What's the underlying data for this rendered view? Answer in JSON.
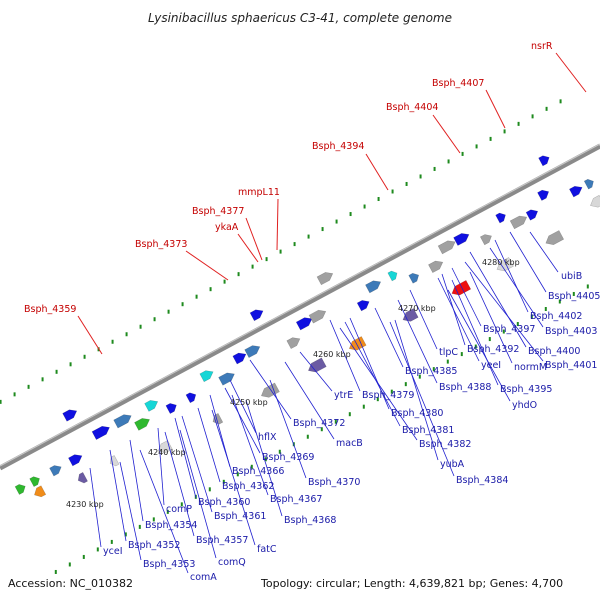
{
  "title": "Lysinibacillus sphaericus C3-41, complete genome",
  "footer": {
    "accession": "Accession: NC_010382",
    "summary": "Topology: circular; Length: 4,639,821 bp; Genes: 4,700"
  },
  "colors": {
    "backbone": "#8a8a8a",
    "red_label": "#c40000",
    "blue_label": "#1a1aa8",
    "forward_gene": "#1010e0",
    "reverse_gene": "#ee1111",
    "tick": "#1e8a1e"
  },
  "scale_labels": [
    "4230 kbp",
    "4240 kbp",
    "4250 kbp",
    "4260 kbp",
    "4270 kbp",
    "4280 kbp"
  ],
  "red_labels": [
    "nsrR",
    "Bsph_4407",
    "Bsph_4404",
    "Bsph_4394",
    "mmpL11",
    "Bsph_4377",
    "ykaA",
    "Bsph_4373",
    "Bsph_4359"
  ],
  "blue_labels": [
    "ubiB",
    "Bsph_4405",
    "Bsph_4402",
    "Bsph_4403",
    "Bsph_4400",
    "Bsph_4401",
    "Bsph_4397",
    "Bsph_4392",
    "yeeI",
    "normM",
    "Bsph_4395",
    "yhdO",
    "tlpC",
    "Bsph_4388",
    "Bsph_4385",
    "ytrE",
    "Bsph_4379",
    "Bsph_4380",
    "Bsph_4381",
    "Bsph_4382",
    "yubA",
    "Bsph_4384",
    "Bsph_4372",
    "macB",
    "hflX",
    "Bsph_4369",
    "Bsph_4370",
    "Bsph_4366",
    "Bsph_4367",
    "Bsph_4362",
    "Bsph_4368",
    "Bsph_4360",
    "Bsph_4361",
    "comP",
    "Bsph_4354",
    "Bsph_4357",
    "fatC",
    "Bsph_4352",
    "comQ",
    "yceI",
    "Bsph_4353",
    "comA"
  ]
}
